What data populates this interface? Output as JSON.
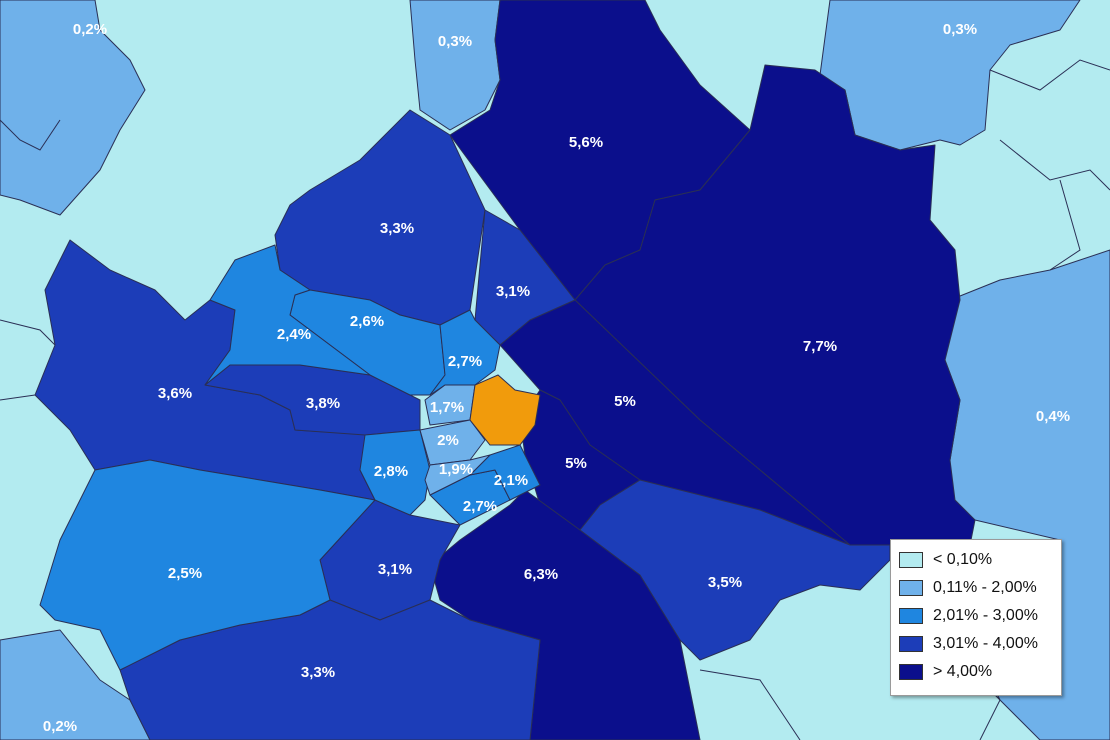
{
  "classes": [
    {
      "label": "< 0,10%",
      "color": "#b3ebf0"
    },
    {
      "label": "0,11% - 2,00%",
      "color": "#6fb1ea"
    },
    {
      "label": "2,01% - 3,00%",
      "color": "#1f86e0"
    },
    {
      "label": "3,01% - 4,00%",
      "color": "#1c3db8"
    },
    {
      "label": "> 4,00%",
      "color": "#0b0f8c"
    }
  ],
  "highlight_color": "#f19b0c",
  "border_color": "#2a2f55",
  "regions": [
    {
      "name": "outer-nw",
      "value": "0,2%",
      "cls": 1
    },
    {
      "name": "outer-n",
      "value": "0,3%",
      "cls": 1
    },
    {
      "name": "outer-ne",
      "value": "0,3%",
      "cls": 1
    },
    {
      "name": "outer-e",
      "value": "0,4%",
      "cls": 1
    },
    {
      "name": "outer-sw",
      "value": "0,2%",
      "cls": 1
    },
    {
      "name": "floridsdorf",
      "value": "5,6%",
      "cls": 4
    },
    {
      "name": "donaustadt",
      "value": "7,7%",
      "cls": 4
    },
    {
      "name": "leopoldstadt",
      "value": "5%",
      "cls": 4
    },
    {
      "name": "landstrasse",
      "value": "5%",
      "cls": 4
    },
    {
      "name": "favoriten",
      "value": "6,3%",
      "cls": 4
    },
    {
      "name": "simmering",
      "value": "3,5%",
      "cls": 3
    },
    {
      "name": "doebling",
      "value": "3,3%",
      "cls": 3
    },
    {
      "name": "brigittenau",
      "value": "3,1%",
      "cls": 3
    },
    {
      "name": "penzing",
      "value": "3,6%",
      "cls": 3
    },
    {
      "name": "ottakring",
      "value": "3,8%",
      "cls": 3
    },
    {
      "name": "meidling",
      "value": "3,1%",
      "cls": 3
    },
    {
      "name": "liesing",
      "value": "3,3%",
      "cls": 3
    },
    {
      "name": "waehring",
      "value": "2,6%",
      "cls": 2
    },
    {
      "name": "hernals",
      "value": "2,4%",
      "cls": 2
    },
    {
      "name": "alsergrund",
      "value": "2,7%",
      "cls": 2
    },
    {
      "name": "rudolfsheim",
      "value": "2,8%",
      "cls": 2
    },
    {
      "name": "hietzing",
      "value": "2,5%",
      "cls": 2
    },
    {
      "name": "margareten",
      "value": "2,7%",
      "cls": 2
    },
    {
      "name": "wieden",
      "value": "2,1%",
      "cls": 2
    },
    {
      "name": "josefstadt",
      "value": "1,7%",
      "cls": 1
    },
    {
      "name": "neubau",
      "value": "2%",
      "cls": 1
    },
    {
      "name": "mariahilf",
      "value": "1,9%",
      "cls": 1
    }
  ]
}
